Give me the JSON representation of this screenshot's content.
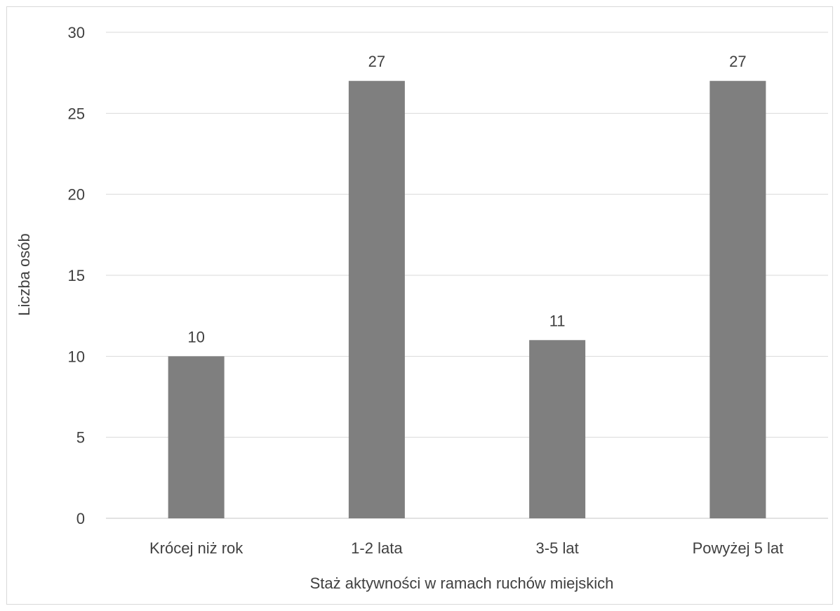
{
  "chart_data": {
    "type": "bar",
    "categories": [
      "Krócej niż rok",
      "1-2 lata",
      "3-5 lat",
      "Powyżej 5 lat"
    ],
    "values": [
      10,
      27,
      11,
      27
    ],
    "data_labels": [
      "10",
      "27",
      "11",
      "27"
    ],
    "xlabel": "Staż aktywności w ramach ruchów miejskich",
    "ylabel": "Liczba osób",
    "ylim": [
      0,
      30
    ],
    "yticks": [
      0,
      5,
      10,
      15,
      20,
      25,
      30
    ],
    "ytick_labels": [
      "0",
      "5",
      "10",
      "15",
      "20",
      "25",
      "30"
    ],
    "grid": true,
    "legend": "none",
    "bar_color": "#7f7f7f",
    "grid_color": "#d9d9d9"
  }
}
